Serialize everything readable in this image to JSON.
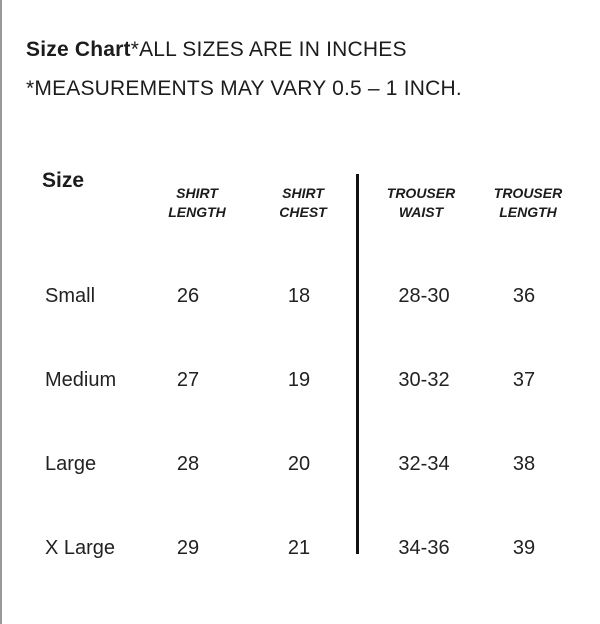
{
  "header": {
    "title_bold": "Size Chart",
    "title_rest": "*ALL SIZES ARE IN INCHES",
    "note": "*MEASUREMENTS MAY VARY 0.5 – 1 INCH."
  },
  "table": {
    "size_label": "Size",
    "columns": [
      {
        "line1": "SHIRT",
        "line2": "LENGTH"
      },
      {
        "line1": "SHIRT",
        "line2": "CHEST"
      },
      {
        "line1": "TROUSER",
        "line2": "WAIST"
      },
      {
        "line1": "TROUSER",
        "line2": "LENGTH"
      }
    ],
    "rows": [
      {
        "size": "Small",
        "values": [
          "26",
          "18",
          "28-30",
          "36"
        ]
      },
      {
        "size": "Medium",
        "values": [
          "27",
          "19",
          "30-32",
          "37"
        ]
      },
      {
        "size": "Large",
        "values": [
          "28",
          "20",
          "32-34",
          "38"
        ]
      },
      {
        "size": "X Large",
        "values": [
          "29",
          "21",
          "34-36",
          "39"
        ]
      }
    ]
  }
}
